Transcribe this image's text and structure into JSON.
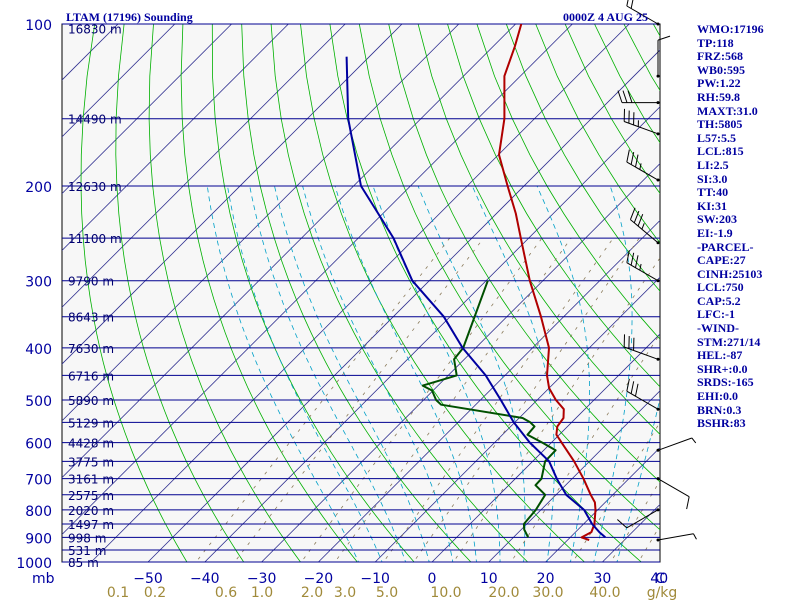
{
  "header": {
    "title": "LTAM (17196) Sounding",
    "time": "0000Z  4 AUG 25"
  },
  "colors": {
    "temperature": "#b00000",
    "dewpoint": "#005000",
    "parcel": "#0000a0",
    "isobar": "#000090",
    "isotherm": "#303090",
    "dry_adiabat": "#00b000",
    "moist_adiabat": "#00a0c8",
    "mixing_ratio": "#8a7a5a",
    "text": "#0000a0"
  },
  "stations_params": [
    "WMO:17196",
    "TP:118",
    "FRZ:568",
    "WB0:595",
    "PW:1.22",
    "RH:59.8",
    "MAXT:31.0",
    "TH:5805",
    "L57:5.5",
    "LCL:815",
    "LI:2.5",
    "SI:3.0",
    "TT:40",
    "KI:31",
    "SW:203",
    "EI:-1.9",
    "-PARCEL-",
    "CAPE:27",
    "CINH:25103",
    "LCL:750",
    "CAP:5.2",
    "LFC:-1",
    "-WIND-",
    "STM:271/14",
    "HEL:-87",
    "SHR+:0.0",
    "SRDS:-165",
    "EHI:0.0",
    "BRN:0.3",
    "BSHR:83"
  ],
  "chart_data": {
    "type": "skew-t",
    "title": "LTAM (17196) Sounding",
    "pressure_axis": {
      "unit": "mb",
      "range": [
        1000,
        100
      ],
      "scale": "log",
      "ticks": [
        100,
        200,
        300,
        400,
        500,
        600,
        700,
        800,
        900,
        1000
      ]
    },
    "temperature_axis": {
      "ticks": [
        -50,
        -40,
        -30,
        -20,
        -10,
        0,
        10,
        20,
        30,
        40
      ],
      "end_label": "C"
    },
    "mixing_ratio_axis": {
      "labels": [
        "0.1",
        "0.2",
        "0.6",
        "1.0",
        "2.0",
        "3.0",
        "5.0",
        "10.0",
        "20.0",
        "30.0",
        "40.0"
      ],
      "unit": "g/kg"
    },
    "height_labels": [
      {
        "p": 102,
        "label": "16830 m"
      },
      {
        "p": 150,
        "label": "14490 m"
      },
      {
        "p": 200,
        "label": "12630 m"
      },
      {
        "p": 250,
        "label": "11100 m"
      },
      {
        "p": 300,
        "label": "9790 m"
      },
      {
        "p": 350,
        "label": "8643 m"
      },
      {
        "p": 400,
        "label": "7630 m"
      },
      {
        "p": 450,
        "label": "6716 m"
      },
      {
        "p": 500,
        "label": "5890 m"
      },
      {
        "p": 550,
        "label": "5129 m"
      },
      {
        "p": 600,
        "label": "4428 m"
      },
      {
        "p": 650,
        "label": "3775 m"
      },
      {
        "p": 700,
        "label": "3161 m"
      },
      {
        "p": 750,
        "label": "2575 m"
      },
      {
        "p": 800,
        "label": "2020 m"
      },
      {
        "p": 850,
        "label": "1497 m"
      },
      {
        "p": 900,
        "label": "998 m"
      },
      {
        "p": 950,
        "label": "531 m"
      },
      {
        "p": 1000,
        "label": "85 m"
      }
    ],
    "series": [
      {
        "name": "temperature",
        "points": [
          [
            100,
            -79.0
          ],
          [
            110,
            -76.2
          ],
          [
            125,
            -72.8
          ],
          [
            150,
            -65.3
          ],
          [
            175,
            -59.9
          ],
          [
            200,
            -52.9
          ],
          [
            225,
            -46.6
          ],
          [
            250,
            -41.4
          ],
          [
            300,
            -32.3
          ],
          [
            350,
            -24.0
          ],
          [
            400,
            -17.1
          ],
          [
            450,
            -12.6
          ],
          [
            475,
            -10.0
          ],
          [
            500,
            -6.7
          ],
          [
            520,
            -3.7
          ],
          [
            540,
            -2.2
          ],
          [
            560,
            -1.8
          ],
          [
            580,
            -0.5
          ],
          [
            600,
            1.8
          ],
          [
            650,
            7.3
          ],
          [
            700,
            12.0
          ],
          [
            750,
            16.1
          ],
          [
            775,
            18.2
          ],
          [
            800,
            19.6
          ],
          [
            850,
            21.9
          ],
          [
            880,
            22.8
          ],
          [
            900,
            22.0
          ],
          [
            910,
            23.8
          ]
        ]
      },
      {
        "name": "dewpoint",
        "points": [
          [
            300,
            -39.7
          ],
          [
            400,
            -32.2
          ],
          [
            420,
            -31.8
          ],
          [
            450,
            -28.5
          ],
          [
            470,
            -32.7
          ],
          [
            480,
            -30.2
          ],
          [
            500,
            -27.8
          ],
          [
            510,
            -26.1
          ],
          [
            540,
            -9.4
          ],
          [
            550,
            -7.3
          ],
          [
            560,
            -5.8
          ],
          [
            580,
            -5.6
          ],
          [
            600,
            -1.6
          ],
          [
            620,
            2.1
          ],
          [
            650,
            2.2
          ],
          [
            700,
            4.6
          ],
          [
            720,
            4.7
          ],
          [
            750,
            8.1
          ],
          [
            800,
            9.1
          ],
          [
            850,
            9.5
          ],
          [
            870,
            10.5
          ],
          [
            900,
            12.6
          ]
        ]
      },
      {
        "name": "parcel",
        "points": [
          [
            115,
            -104.0
          ],
          [
            150,
            -92.8
          ],
          [
            200,
            -78.7
          ],
          [
            250,
            -63.8
          ],
          [
            300,
            -53.0
          ],
          [
            350,
            -41.1
          ],
          [
            400,
            -32.3
          ],
          [
            450,
            -23.4
          ],
          [
            500,
            -16.4
          ],
          [
            550,
            -10.2
          ],
          [
            600,
            -3.8
          ],
          [
            650,
            2.9
          ],
          [
            700,
            7.3
          ],
          [
            750,
            11.8
          ],
          [
            800,
            17.6
          ],
          [
            850,
            21.5
          ],
          [
            880,
            24.2
          ],
          [
            900,
            26.2
          ]
        ]
      }
    ],
    "wind_barbs": [
      {
        "p": 100,
        "dir": 300,
        "spd": 20
      },
      {
        "p": 125,
        "dir": 0,
        "spd": 10
      },
      {
        "p": 140,
        "dir": 270,
        "spd": 30
      },
      {
        "p": 160,
        "dir": 290,
        "spd": 35
      },
      {
        "p": 195,
        "dir": 300,
        "spd": 35
      },
      {
        "p": 255,
        "dir": 310,
        "spd": 35
      },
      {
        "p": 300,
        "dir": 300,
        "spd": 35
      },
      {
        "p": 420,
        "dir": 290,
        "spd": 30
      },
      {
        "p": 520,
        "dir": 300,
        "spd": 30
      },
      {
        "p": 620,
        "dir": 70,
        "spd": 5
      },
      {
        "p": 700,
        "dir": 120,
        "spd": 10
      },
      {
        "p": 800,
        "dir": 240,
        "spd": 10
      },
      {
        "p": 910,
        "dir": 80,
        "spd": 5
      }
    ]
  }
}
